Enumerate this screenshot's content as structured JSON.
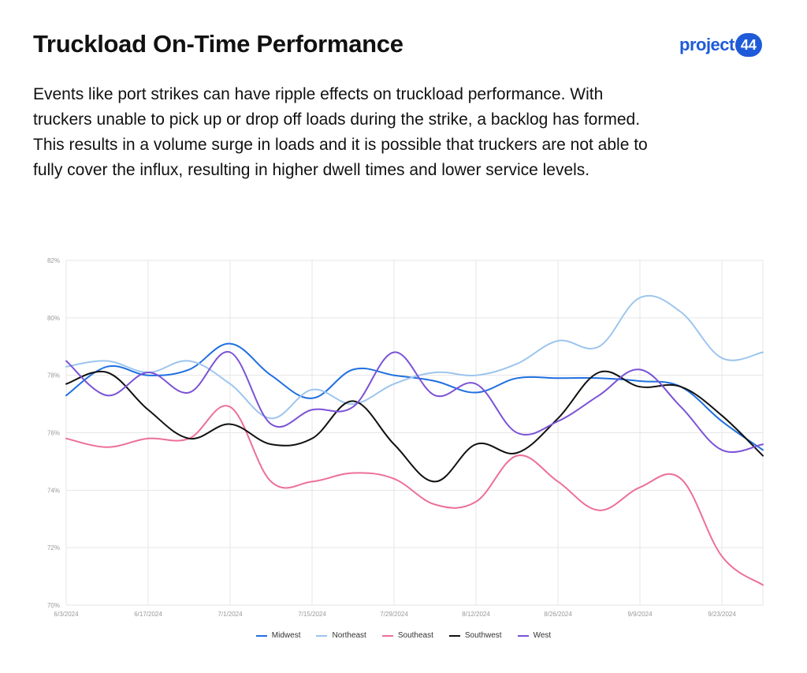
{
  "header": {
    "title": "Truckload On-Time Performance",
    "logo_text": "project",
    "logo_badge": "44",
    "description": "Events like port strikes can have ripple effects on truckload performance. With truckers unable to pick up or drop off loads during the strike, a backlog has formed. This results in a volume surge in loads and it is possible that truckers are not able to fully cover the influx, resulting in higher dwell times and lower service levels."
  },
  "chart_data": {
    "type": "line",
    "title": "",
    "xlabel": "",
    "ylabel": "",
    "ylim": [
      70,
      82
    ],
    "yticks": [
      "70%",
      "72%",
      "74%",
      "76%",
      "78%",
      "80%",
      "82%"
    ],
    "xticks": [
      "6/3/2024",
      "6/17/2024",
      "7/1/2024",
      "7/15/2024",
      "7/29/2024",
      "8/12/2024",
      "8/26/2024",
      "9/9/2024",
      "9/23/2024"
    ],
    "grid": true,
    "legend": "bottom",
    "x": [
      "6/3/2024",
      "6/10/2024",
      "6/17/2024",
      "6/24/2024",
      "7/1/2024",
      "7/8/2024",
      "7/15/2024",
      "7/22/2024",
      "7/29/2024",
      "8/5/2024",
      "8/12/2024",
      "8/19/2024",
      "8/26/2024",
      "9/2/2024",
      "9/9/2024",
      "9/16/2024",
      "9/23/2024",
      "9/30/2024"
    ],
    "series": [
      {
        "name": "Midwest",
        "color": "#1f6fe0",
        "values": [
          77.3,
          78.3,
          78.0,
          78.2,
          79.1,
          78.0,
          77.2,
          78.2,
          78.0,
          77.8,
          77.4,
          77.9,
          77.9,
          77.9,
          77.8,
          77.6,
          76.4,
          75.4
        ]
      },
      {
        "name": "Northeast",
        "color": "#9dc5ee",
        "values": [
          78.3,
          78.5,
          78.1,
          78.5,
          77.7,
          76.5,
          77.5,
          77.0,
          77.7,
          78.1,
          78.0,
          78.4,
          79.2,
          79.0,
          80.7,
          80.2,
          78.6,
          78.8
        ]
      },
      {
        "name": "Southeast",
        "color": "#ec6f9c",
        "values": [
          75.8,
          75.5,
          75.8,
          75.8,
          76.9,
          74.3,
          74.3,
          74.6,
          74.4,
          73.5,
          73.6,
          75.2,
          74.3,
          73.3,
          74.1,
          74.4,
          71.7,
          70.7
        ]
      },
      {
        "name": "Southwest",
        "color": "#111111",
        "values": [
          77.7,
          78.1,
          76.8,
          75.8,
          76.3,
          75.6,
          75.8,
          77.1,
          75.6,
          74.3,
          75.6,
          75.3,
          76.5,
          78.1,
          77.6,
          77.6,
          76.6,
          75.2
        ]
      },
      {
        "name": "West",
        "color": "#7b52d6",
        "values": [
          78.5,
          77.3,
          78.1,
          77.4,
          78.8,
          76.3,
          76.8,
          76.9,
          78.8,
          77.3,
          77.7,
          76.0,
          76.4,
          77.3,
          78.2,
          76.9,
          75.4,
          75.6
        ]
      }
    ]
  }
}
